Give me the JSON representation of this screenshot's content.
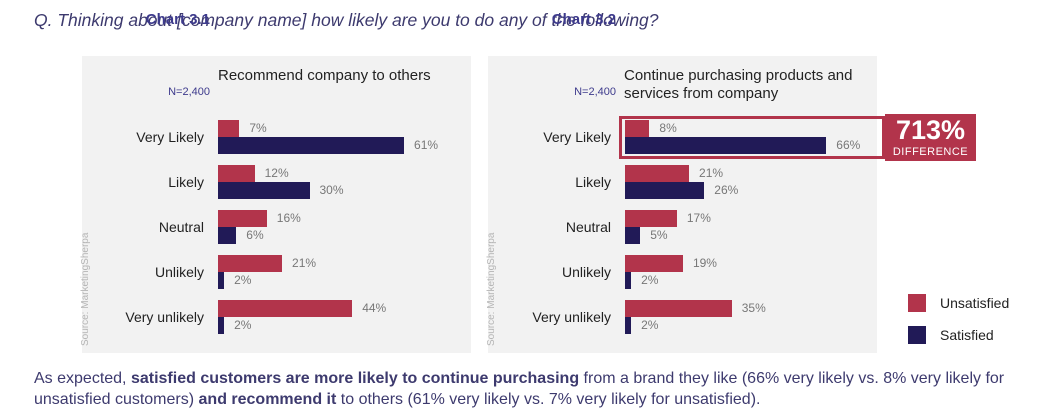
{
  "question": "Q. Thinking about [company name] how likely are you to do any of the following?",
  "source": "Source: MarketingSherpa",
  "colors": {
    "unsatisfied": "#b2344b",
    "satisfied": "#211a57",
    "accent": "#3d3a8c"
  },
  "chart_data": [
    {
      "type": "bar",
      "number": "Chart 3.1",
      "title": "Recommend company to others",
      "n": "N=2,400",
      "categories": [
        "Very Likely",
        "Likely",
        "Neutral",
        "Unlikely",
        "Very unlikely"
      ],
      "series": [
        {
          "name": "Unsatisfied",
          "values": [
            7,
            12,
            16,
            21,
            44
          ]
        },
        {
          "name": "Satisfied",
          "values": [
            61,
            30,
            6,
            2,
            2
          ]
        }
      ],
      "value_labels": {
        "Unsatisfied": [
          "7%",
          "12%",
          "16%",
          "21%",
          "44%"
        ],
        "Satisfied": [
          "61%",
          "30%",
          "6%",
          "2%",
          "2%"
        ]
      }
    },
    {
      "type": "bar",
      "number": "Chart 3.2",
      "title": "Continue purchasing products and services from company",
      "title_lines": [
        "Continue purchasing products and",
        "services from company"
      ],
      "n": "N=2,400",
      "categories": [
        "Very Likely",
        "Likely",
        "Neutral",
        "Unlikely",
        "Very unlikely"
      ],
      "series": [
        {
          "name": "Unsatisfied",
          "values": [
            8,
            21,
            17,
            19,
            35
          ]
        },
        {
          "name": "Satisfied",
          "values": [
            66,
            26,
            5,
            2,
            2
          ]
        }
      ],
      "value_labels": {
        "Unsatisfied": [
          "8%",
          "21%",
          "17%",
          "19%",
          "35%"
        ],
        "Satisfied": [
          "66%",
          "26%",
          "5%",
          "2%",
          "2%"
        ]
      },
      "annotation": {
        "value": "713%",
        "label": "DIFFERENCE"
      }
    }
  ],
  "legend": [
    {
      "name": "Unsatisfied",
      "color": "#b2344b"
    },
    {
      "name": "Satisfied",
      "color": "#211a57"
    }
  ],
  "footnote": {
    "p1": "As expected, ",
    "b1": "satisfied customers are more likely to continue purchasing",
    "p2": " from a brand they like (66% very likely vs. 8% very likely for unsatisfied customers) ",
    "b2": "and recommend it",
    "p3": " to others (61% very likely vs. 7% very likely for unsatisfied)."
  }
}
